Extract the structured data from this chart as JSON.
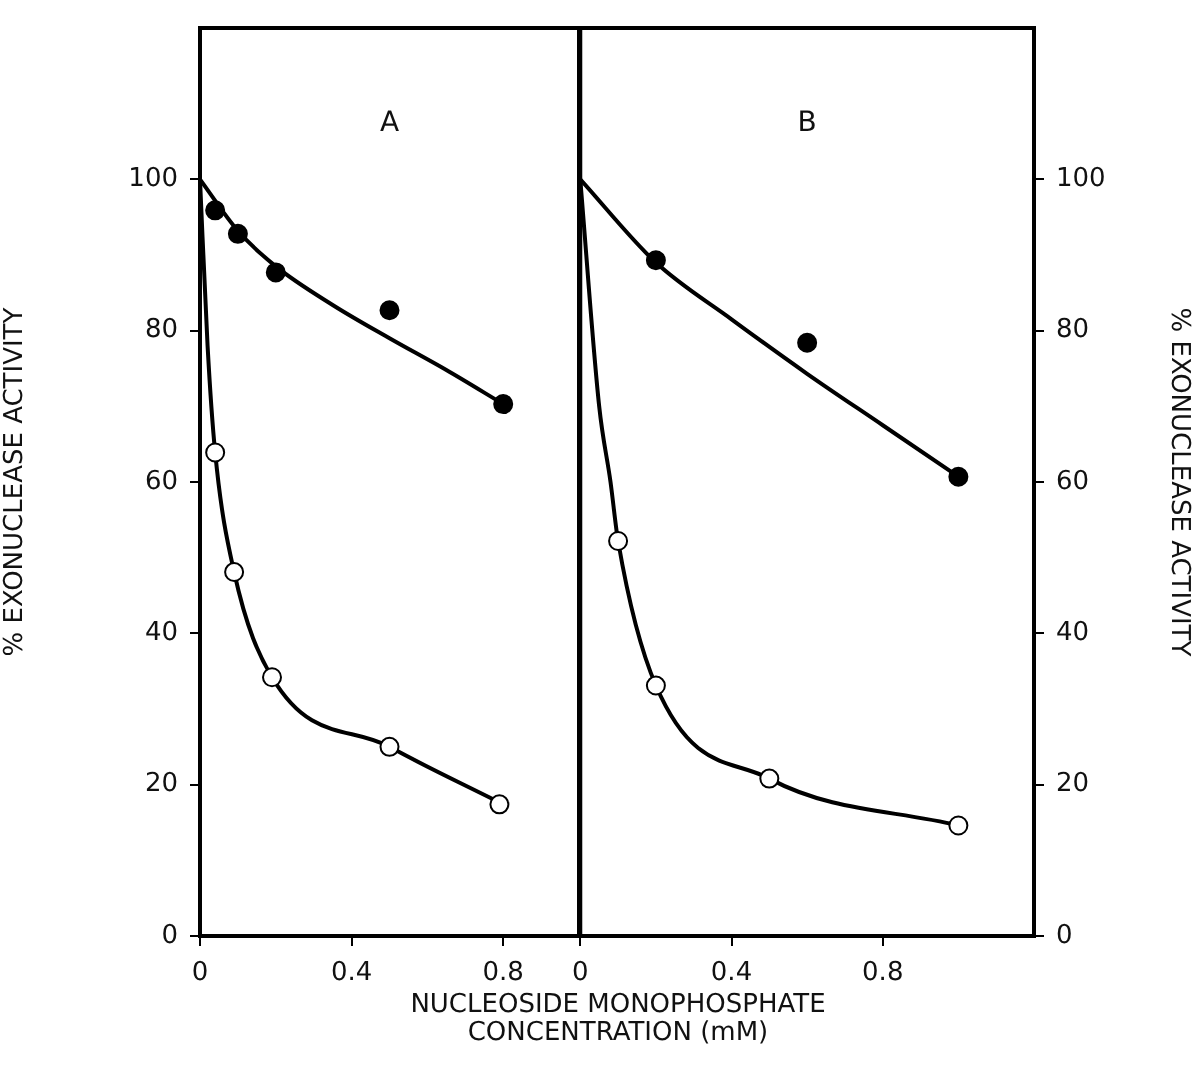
{
  "chart_data": [
    {
      "type": "scatter",
      "title": "A",
      "xlabel": "NUCLEOSIDE MONOPHOSPHATE\nCONCENTRATION (mM)",
      "ylabel": "% EXONUCLEASE ACTIVITY",
      "xlim": [
        0,
        1.0
      ],
      "xticks": [
        0,
        0.4,
        0.8
      ],
      "ylim": [
        0,
        120
      ],
      "yticks": [
        0,
        20,
        40,
        60,
        80,
        100
      ],
      "grid": false,
      "legend": false,
      "series": [
        {
          "type": "line",
          "marker": "none",
          "color": "#000000",
          "x": [
            0,
            0.1,
            0.2,
            0.35,
            0.5,
            0.65,
            0.8
          ],
          "values": [
            100,
            93.2,
            88.5,
            83.4,
            79,
            74.8,
            70.3
          ]
        },
        {
          "type": "line",
          "marker": "none",
          "color": "#000000",
          "x": [
            0,
            0.02,
            0.04,
            0.09,
            0.19,
            0.5,
            0.8
          ],
          "values": [
            100,
            78,
            63.9,
            48.1,
            34.2,
            25,
            17.4
          ]
        },
        {
          "marker": "circle",
          "color": "#000000",
          "x": [
            0.04,
            0.1,
            0.2,
            0.5,
            0.8
          ],
          "values": [
            95.9,
            92.8,
            87.7,
            82.7,
            70.3
          ]
        },
        {
          "marker": "circle",
          "color": "#ffffff",
          "x": [
            0.04,
            0.09,
            0.19,
            0.5,
            0.79
          ],
          "values": [
            63.9,
            48.1,
            34.2,
            25,
            17.4
          ]
        }
      ]
    },
    {
      "type": "scatter",
      "title": "B",
      "y2label": "% EXONUCLEASE ACTIVITY",
      "xlim": [
        0,
        1.2
      ],
      "xticks": [
        0,
        0.4,
        0.8
      ],
      "y2lim": [
        0,
        120
      ],
      "y2ticks": [
        0,
        20,
        40,
        60,
        80,
        100
      ],
      "grid": false,
      "legend": false,
      "series": [
        {
          "type": "line",
          "marker": "none",
          "axis": "y2",
          "color": "#000000",
          "x": [
            0,
            0.2,
            0.4,
            0.6,
            0.8,
            1.0
          ],
          "values": [
            100,
            89,
            81.5,
            74.3,
            67.5,
            60.7
          ]
        },
        {
          "type": "line",
          "marker": "none",
          "axis": "y2",
          "color": "#000000",
          "x": [
            0,
            0.05,
            0.08,
            0.1,
            0.2,
            0.5,
            1.0
          ],
          "values": [
            100,
            70,
            60,
            52.2,
            33.1,
            20.8,
            14.6
          ]
        },
        {
          "marker": "circle",
          "axis": "y2",
          "color": "#000000",
          "x": [
            0.2,
            0.6,
            1.0
          ],
          "values": [
            89.3,
            78.4,
            60.7
          ]
        },
        {
          "marker": "circle",
          "axis": "y2",
          "color": "#ffffff",
          "x": [
            0.1,
            0.2,
            0.5,
            1.0
          ],
          "values": [
            52.2,
            33.1,
            20.8,
            14.6
          ]
        }
      ]
    }
  ]
}
